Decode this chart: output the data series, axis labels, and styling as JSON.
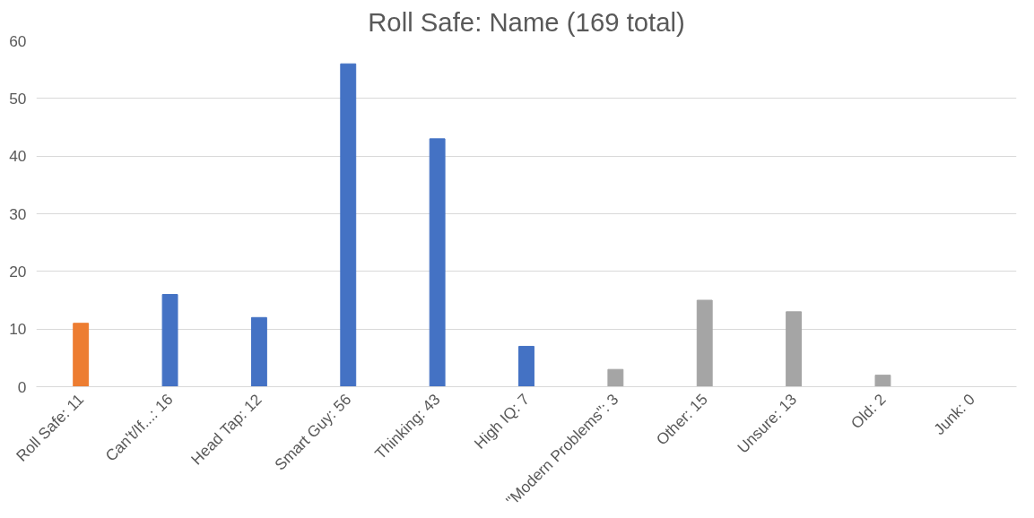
{
  "chart_data": {
    "type": "bar",
    "title": "Roll Safe: Name (169 total)",
    "categories": [
      "Roll Safe: 11",
      "Can't/If...: 16",
      "Head Tap: 12",
      "Smart Guy: 56",
      "Thinking: 43",
      "High IQ: 7",
      "\"Modern Problems\": 3",
      "Other: 15",
      "Unsure: 13",
      "Old: 2",
      "Junk: 0"
    ],
    "values": [
      11,
      16,
      12,
      56,
      43,
      7,
      3,
      15,
      13,
      2,
      0
    ],
    "colors": [
      "#ed7d31",
      "#4472c4",
      "#4472c4",
      "#4472c4",
      "#4472c4",
      "#4472c4",
      "#a5a5a5",
      "#a5a5a5",
      "#a5a5a5",
      "#a5a5a5",
      "#a5a5a5"
    ],
    "ylim": [
      0,
      60
    ],
    "yticks": [
      0,
      10,
      20,
      30,
      40,
      50,
      60
    ],
    "grid": "y"
  }
}
